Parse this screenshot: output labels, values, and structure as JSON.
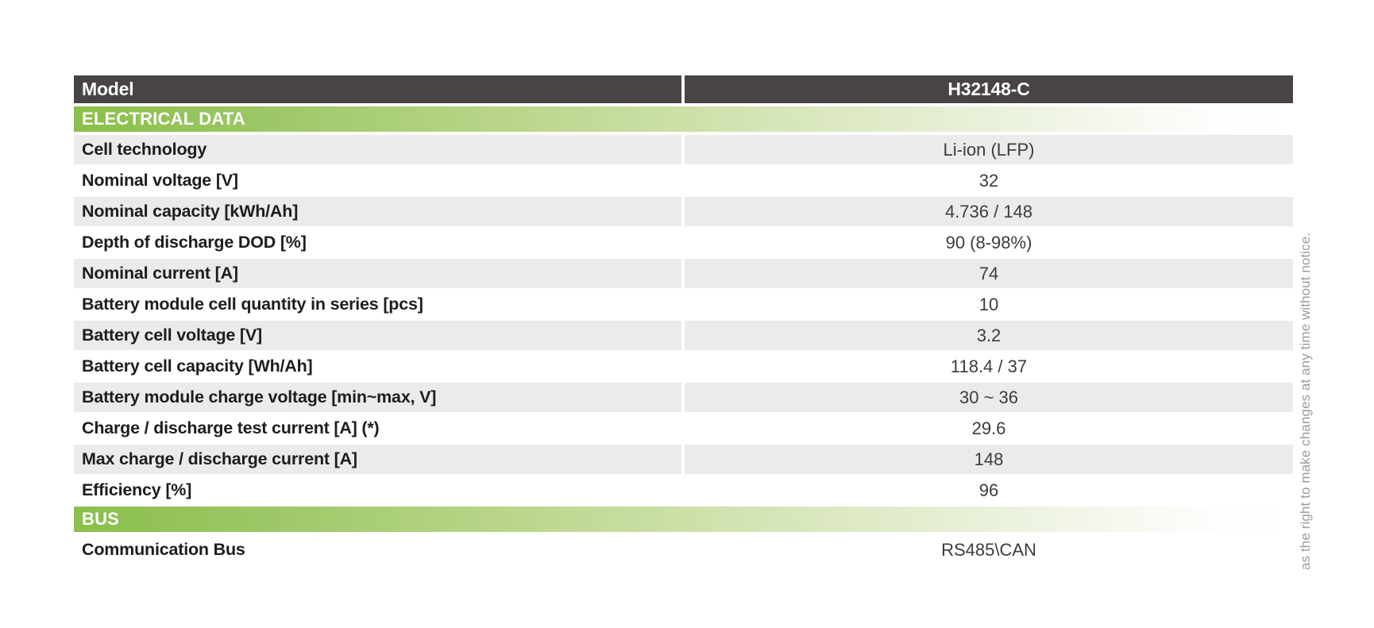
{
  "document": {
    "model_header": {
      "label": "Model",
      "value": "H32148-C"
    },
    "sections": [
      {
        "title": "ELECTRICAL DATA",
        "rows": [
          {
            "label": "Cell technology",
            "value": "Li-ion (LFP)"
          },
          {
            "label": "Nominal voltage [V]",
            "value": "32"
          },
          {
            "label": "Nominal capacity [kWh/Ah]",
            "value": "4.736 / 148"
          },
          {
            "label": "Depth of discharge DOD [%]",
            "value": "90 (8-98%)"
          },
          {
            "label": "Nominal current [A]",
            "value": "74"
          },
          {
            "label": "Battery module cell quantity in series [pcs]",
            "value": "10"
          },
          {
            "label": "Battery cell voltage [V]",
            "value": "3.2"
          },
          {
            "label": "Battery cell capacity [Wh/Ah]",
            "value": "118.4 / 37"
          },
          {
            "label": "Battery module charge voltage [min~max, V]",
            "value": "30 ~ 36"
          },
          {
            "label": "Charge / discharge test current [A] (*)",
            "value": "29.6"
          },
          {
            "label": "Max charge / discharge current [A]",
            "value": "148"
          },
          {
            "label": "Efficiency [%]",
            "value": "96"
          }
        ]
      },
      {
        "title": "BUS",
        "rows": [
          {
            "label": "Communication Bus",
            "value": "RS485\\CAN"
          }
        ]
      }
    ],
    "side_note": "as the right to make changes at any time without notice.",
    "colors": {
      "header_bg": "#474443",
      "section_green": "#8bbf4a",
      "row_shaded": "#ebebeb",
      "label_text": "#1d1d1b",
      "value_text": "#3c3c3b",
      "side_note_text": "#9b9b99"
    }
  }
}
